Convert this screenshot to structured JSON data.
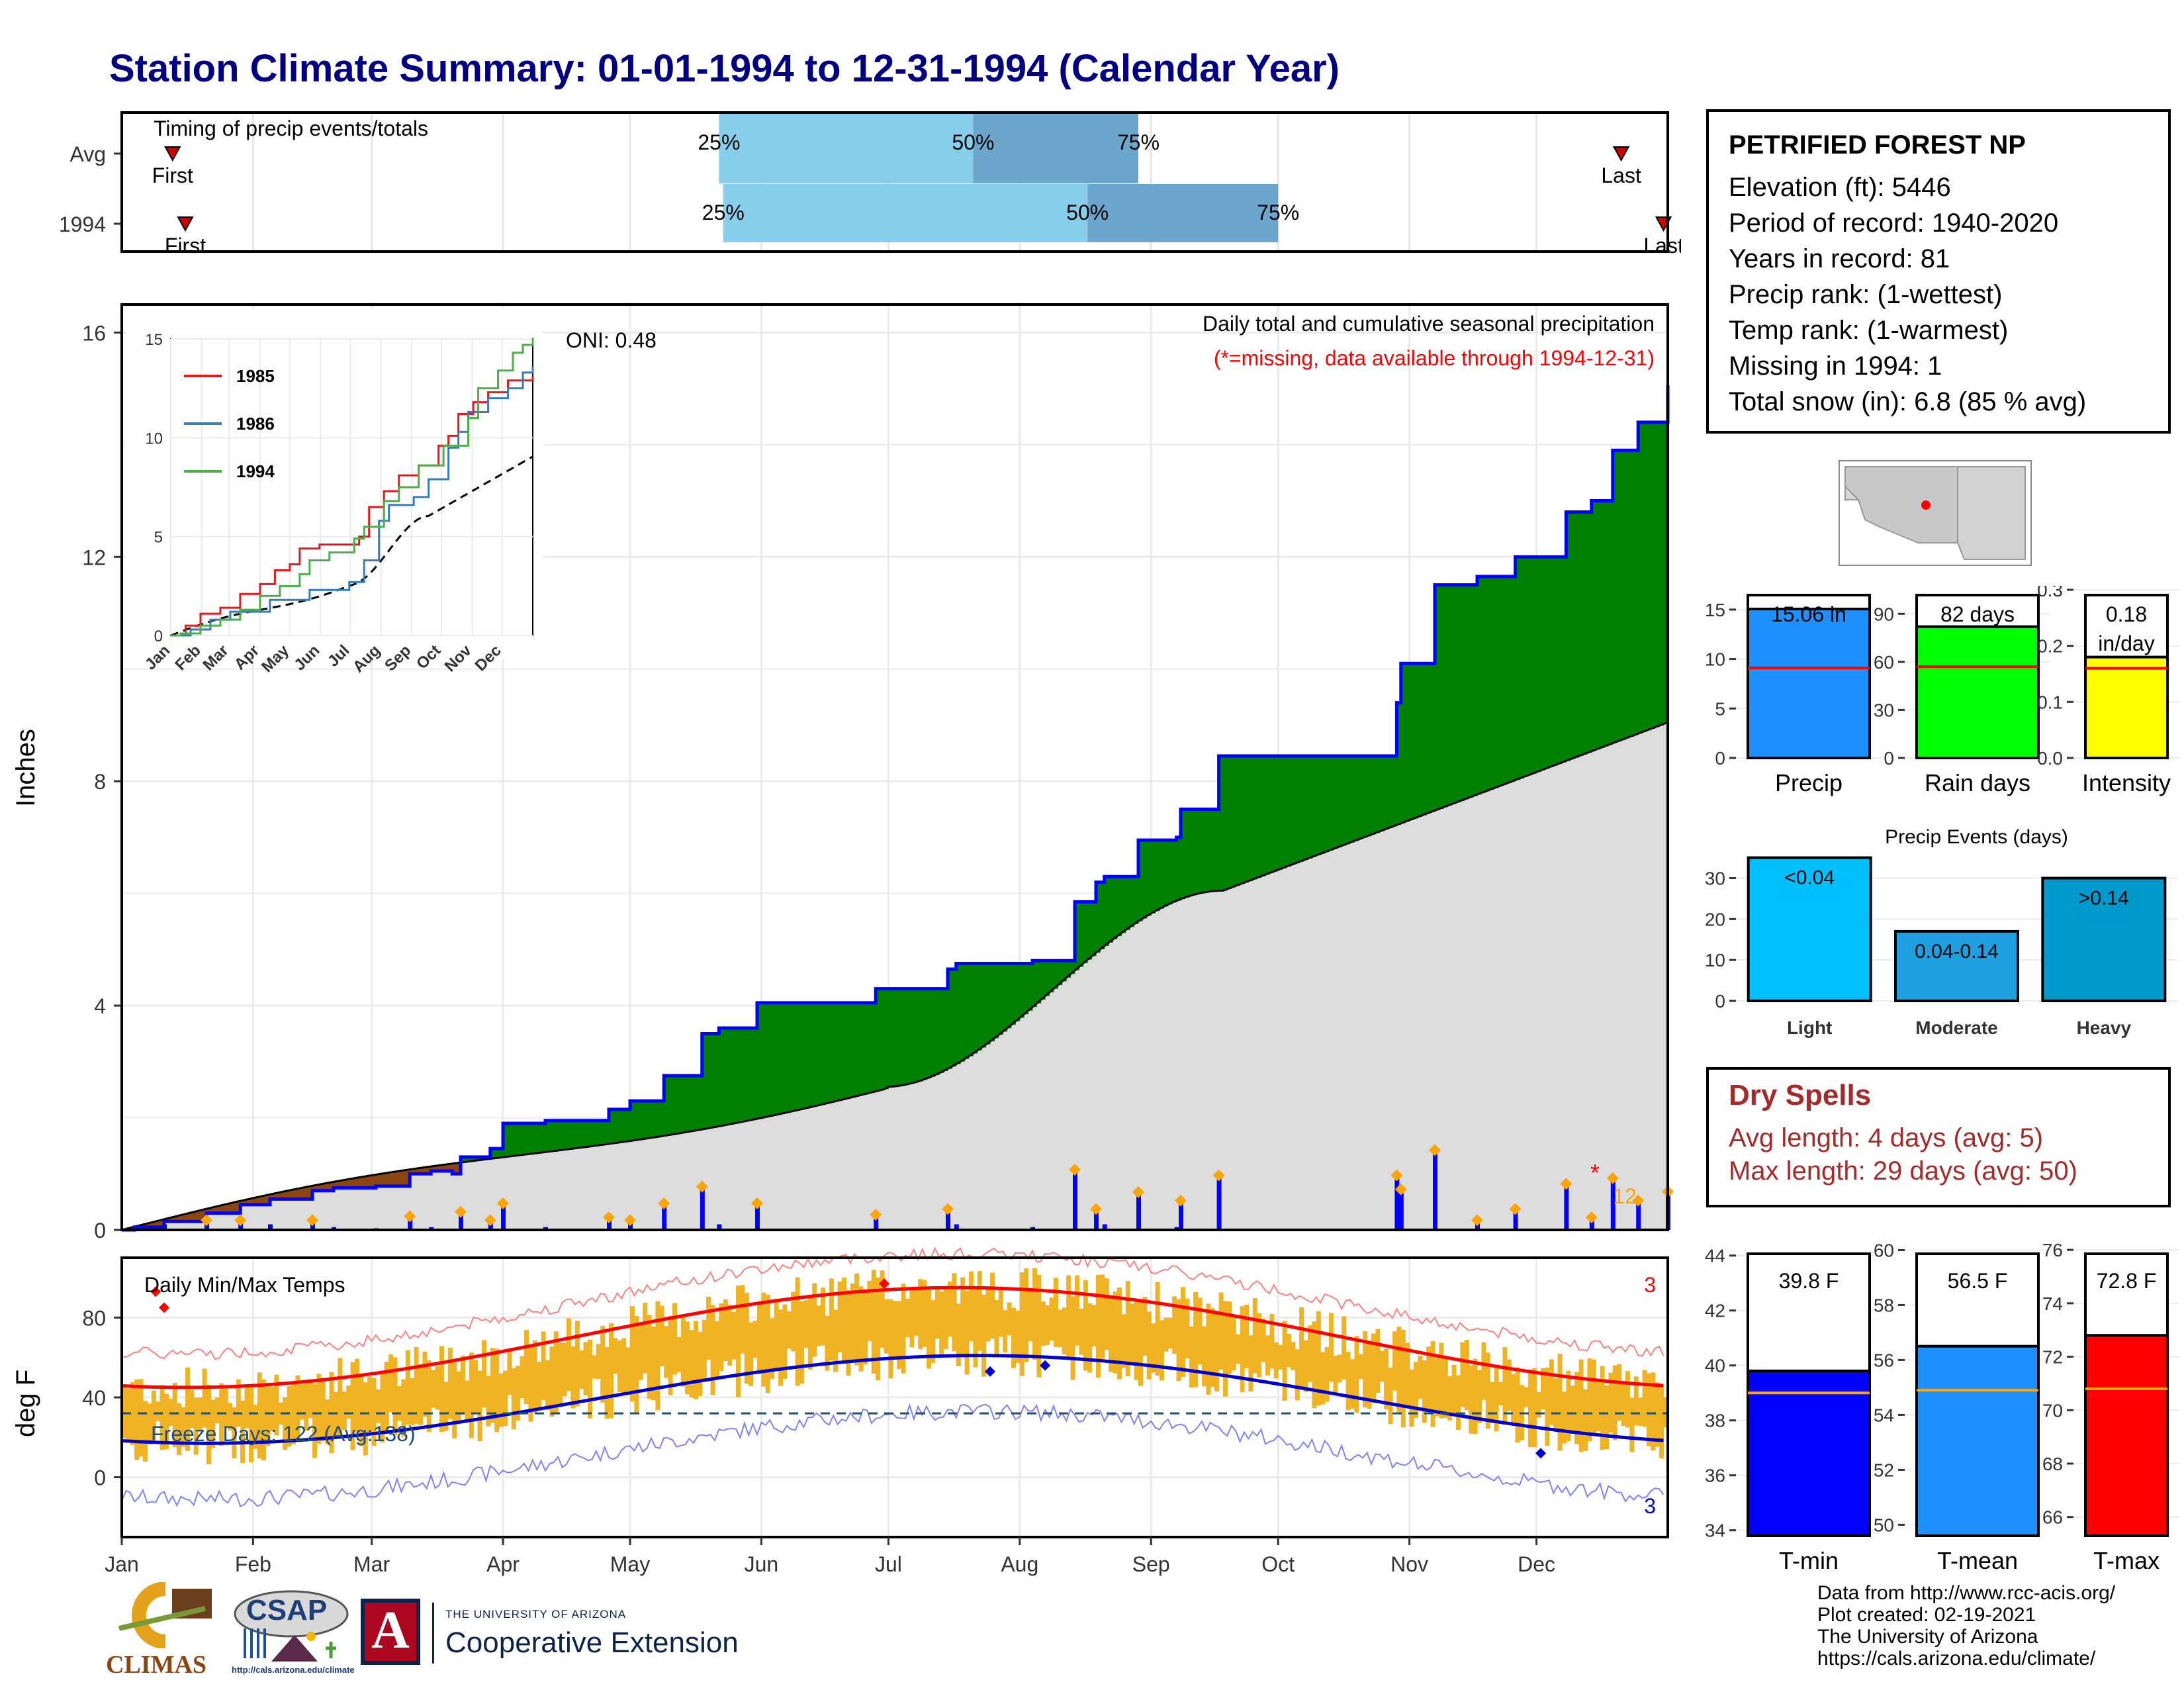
{
  "title": "Station Climate Summary: 01-01-1994 to 12-31-1994 (Calendar Year)",
  "timing": {
    "label": "Timing of precip events/totals",
    "rows": [
      {
        "label": "Avg",
        "first": "First",
        "last": "Last",
        "p25": "25%",
        "p50": "50%",
        "p75": "75%",
        "first_doy": 12,
        "p25_doy": 141,
        "p50_doy": 201,
        "p75_doy": 240,
        "last_doy": 354
      },
      {
        "label": "1994",
        "first": "First",
        "last": "Last",
        "p25": "25%",
        "p50": "50%",
        "p75": "75%",
        "first_doy": 15,
        "p25_doy": 142,
        "p50_doy": 228,
        "p75_doy": 273,
        "last_doy": 364
      }
    ]
  },
  "precip_panel": {
    "ylabel": "Inches",
    "title": "Daily total and cumulative seasonal precipitation",
    "subtitle": "(*=missing, data available through 1994-12-31)",
    "oni": "ONI: 0.48",
    "yticks": [
      "0",
      "4",
      "8",
      "12",
      "16"
    ],
    "missing_count": "12",
    "colors": {
      "above_avg": "#008000",
      "below_avg": "#8B4513",
      "normal": "#DDDDDD",
      "daily": "#0000FF",
      "event": "#FFA500"
    }
  },
  "inset": {
    "legend": [
      "1985",
      "1986",
      "1994"
    ],
    "legend_colors": [
      "#E41A1C",
      "#377EB8",
      "#4DAF4A"
    ],
    "months": [
      "Jan",
      "Feb",
      "Mar",
      "Apr",
      "May",
      "Jun",
      "Jul",
      "Aug",
      "Sep",
      "Oct",
      "Nov",
      "Dec"
    ],
    "yticks": [
      "0",
      "5",
      "10",
      "15"
    ]
  },
  "temp_panel": {
    "label": "Daily Min/Max Temps",
    "ylabel": "deg F",
    "freeze": "Freeze Days: 122 (Avg:138)",
    "max_records": "3",
    "min_records": "3",
    "yticks": [
      "0",
      "40",
      "80"
    ]
  },
  "months": [
    "Jan",
    "Feb",
    "Mar",
    "Apr",
    "May",
    "Jun",
    "Jul",
    "Aug",
    "Sep",
    "Oct",
    "Nov",
    "Dec"
  ],
  "station": {
    "name": "PETRIFIED FOREST NP",
    "lines": [
      "Elevation (ft): 5446",
      "Period of record: 1940-2020",
      "Years in record: 81",
      "Precip rank:  (1-wettest)",
      "Temp rank:  (1-warmest)",
      "Missing in 1994: 1",
      "Total snow (in): 6.8 (85 % avg)"
    ]
  },
  "summary_bars": [
    {
      "label": "Precip",
      "value_text": "15.06 in",
      "value": 15.06,
      "avg": 9.1,
      "ylim": [
        0,
        17
      ],
      "yticks": [
        "0",
        "5",
        "10",
        "15"
      ],
      "color": "#1E90FF"
    },
    {
      "label": "Rain days",
      "value_text": "82 days",
      "value": 82,
      "avg": 57,
      "ylim": [
        0,
        105
      ],
      "yticks": [
        "0",
        "30",
        "60",
        "90"
      ],
      "color": "#00FF00"
    },
    {
      "label": "Intensity",
      "value_text": "0.18",
      "value_text2": "in/day",
      "value": 0.18,
      "avg": 0.16,
      "ylim": [
        0,
        0.3
      ],
      "yticks": [
        "0.0",
        "0.1",
        "0.2",
        "0.3"
      ],
      "color": "#FFFF00"
    }
  ],
  "events": {
    "title": "Precip Events (days)",
    "categories": [
      "Light",
      "Moderate",
      "Heavy"
    ],
    "labels": [
      "<0.04",
      "0.04-0.14",
      ">0.14"
    ],
    "values": [
      35,
      17,
      30
    ],
    "yticks": [
      "0",
      "10",
      "20",
      "30"
    ],
    "colors": [
      "#00BFFF",
      "#1E9FE0",
      "#0099CC"
    ]
  },
  "dry_spells": {
    "title": "Dry Spells",
    "line1": "Avg length: 4 days (avg: 5)",
    "line2": "Max length: 29 days (avg: 50)"
  },
  "temp_bars": [
    {
      "label": "T-min",
      "value_text": "39.8 F",
      "value": 39.8,
      "avg": 39.0,
      "ylim": [
        33.8,
        44.5
      ],
      "yticks": [
        "34",
        "36",
        "38",
        "40",
        "42",
        "44"
      ],
      "color": "#0000FF"
    },
    {
      "label": "T-mean",
      "value_text": "56.5 F",
      "value": 56.5,
      "avg": 54.9,
      "ylim": [
        49.6,
        60.3
      ],
      "yticks": [
        "50",
        "52",
        "54",
        "56",
        "58",
        "60"
      ],
      "color": "#1E90FF"
    },
    {
      "label": "T-max",
      "value_text": "72.8 F",
      "value": 72.8,
      "avg": 70.8,
      "ylim": [
        65.3,
        76.3
      ],
      "yticks": [
        "66",
        "68",
        "70",
        "72",
        "74",
        "76"
      ],
      "color": "#FF0000"
    }
  ],
  "footer": [
    "Data from http://www.rcc-acis.org/",
    "Plot created: 02-19-2021",
    "The University of Arizona",
    "https://cals.arizona.edu/climate/"
  ],
  "logos": {
    "climas": "CLIMAS",
    "csap": "CSAP",
    "csap_url": "http://cals.arizona.edu/climate",
    "ua_top": "THE UNIVERSITY OF ARIZONA",
    "ua_bottom": "Cooperative Extension",
    "ua_letter": "A"
  }
}
